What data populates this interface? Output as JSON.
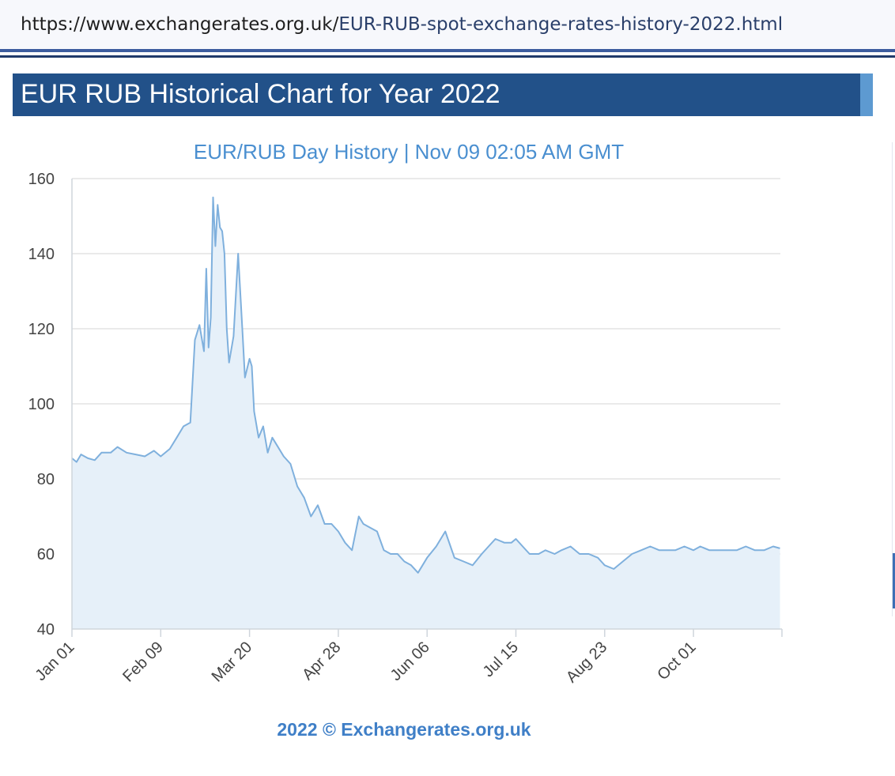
{
  "browser": {
    "url_host": "https://www.exchangerates.org.uk/",
    "url_path": "EUR-RUB-spot-exchange-rates-history-2022.html"
  },
  "page": {
    "heading": "EUR RUB Historical Chart for Year 2022"
  },
  "colors": {
    "header_bg": "#225189",
    "line": "#7fb0dd",
    "area": "#e6f0f9",
    "title_text": "#4a8fd0"
  },
  "chart_data": {
    "type": "area",
    "title": "EUR/RUB  Day History | Nov 09 02:05 AM GMT",
    "footer": "2022 © Exchangerates.org.uk",
    "xlabel": "",
    "ylabel": "",
    "ylim": [
      40,
      160
    ],
    "yticks": [
      40,
      60,
      80,
      100,
      120,
      140,
      160
    ],
    "xticks": [
      "Jan 01",
      "Feb 09",
      "Mar 20",
      "Apr 28",
      "Jun 06",
      "Jul 15",
      "Aug 23",
      "Oct 01"
    ],
    "grid": "horizontal",
    "legend": "none",
    "series": [
      {
        "x": [
          "2022-01-01",
          "2022-01-03",
          "2022-01-05",
          "2022-01-08",
          "2022-01-11",
          "2022-01-14",
          "2022-01-18",
          "2022-01-21",
          "2022-01-25",
          "2022-01-29",
          "2022-02-02",
          "2022-02-06",
          "2022-02-09",
          "2022-02-13",
          "2022-02-16",
          "2022-02-19",
          "2022-02-22",
          "2022-02-24",
          "2022-02-26",
          "2022-02-28",
          "2022-03-01",
          "2022-03-02",
          "2022-03-03",
          "2022-03-04",
          "2022-03-05",
          "2022-03-06",
          "2022-03-07",
          "2022-03-08",
          "2022-03-09",
          "2022-03-10",
          "2022-03-11",
          "2022-03-13",
          "2022-03-15",
          "2022-03-17",
          "2022-03-18",
          "2022-03-20",
          "2022-03-21",
          "2022-03-22",
          "2022-03-24",
          "2022-03-26",
          "2022-03-28",
          "2022-03-30",
          "2022-04-01",
          "2022-04-04",
          "2022-04-07",
          "2022-04-10",
          "2022-04-13",
          "2022-04-16",
          "2022-04-19",
          "2022-04-22",
          "2022-04-25",
          "2022-04-28",
          "2022-05-01",
          "2022-05-04",
          "2022-05-07",
          "2022-05-09",
          "2022-05-12",
          "2022-05-15",
          "2022-05-18",
          "2022-05-21",
          "2022-05-24",
          "2022-05-27",
          "2022-05-30",
          "2022-06-02",
          "2022-06-06",
          "2022-06-10",
          "2022-06-14",
          "2022-06-18",
          "2022-06-22",
          "2022-06-26",
          "2022-06-30",
          "2022-07-03",
          "2022-07-06",
          "2022-07-10",
          "2022-07-13",
          "2022-07-15",
          "2022-07-18",
          "2022-07-21",
          "2022-07-25",
          "2022-07-28",
          "2022-08-01",
          "2022-08-04",
          "2022-08-08",
          "2022-08-12",
          "2022-08-16",
          "2022-08-20",
          "2022-08-23",
          "2022-08-27",
          "2022-08-31",
          "2022-09-04",
          "2022-09-08",
          "2022-09-12",
          "2022-09-16",
          "2022-09-20",
          "2022-09-23",
          "2022-09-27",
          "2022-10-01",
          "2022-10-04",
          "2022-10-08",
          "2022-10-12",
          "2022-10-16",
          "2022-10-20",
          "2022-10-24",
          "2022-10-28",
          "2022-11-01",
          "2022-11-05",
          "2022-11-08"
        ],
        "y": [
          85.5,
          84.5,
          86.5,
          85.5,
          85,
          87,
          87,
          88.5,
          87,
          86.5,
          86,
          87.5,
          86,
          88,
          91,
          94,
          95,
          117,
          121,
          114,
          136,
          115,
          123,
          155,
          142,
          153,
          147,
          146,
          140,
          120,
          111,
          118,
          140,
          118,
          107,
          112,
          110,
          98,
          91,
          94,
          87,
          91,
          89,
          86,
          84,
          78,
          75,
          70,
          73,
          68,
          68,
          66,
          63,
          61,
          70,
          68,
          67,
          66,
          61,
          60,
          60,
          58,
          57,
          55,
          59,
          62,
          66,
          59,
          58,
          57,
          60,
          62,
          64,
          63,
          63,
          64,
          62,
          60,
          60,
          61,
          60,
          61,
          62,
          60,
          60,
          59,
          57,
          56,
          58,
          60,
          61,
          62,
          61,
          61,
          61,
          62,
          61,
          62,
          61,
          61,
          61,
          61,
          62,
          61,
          61,
          62,
          61.5
        ]
      }
    ]
  }
}
